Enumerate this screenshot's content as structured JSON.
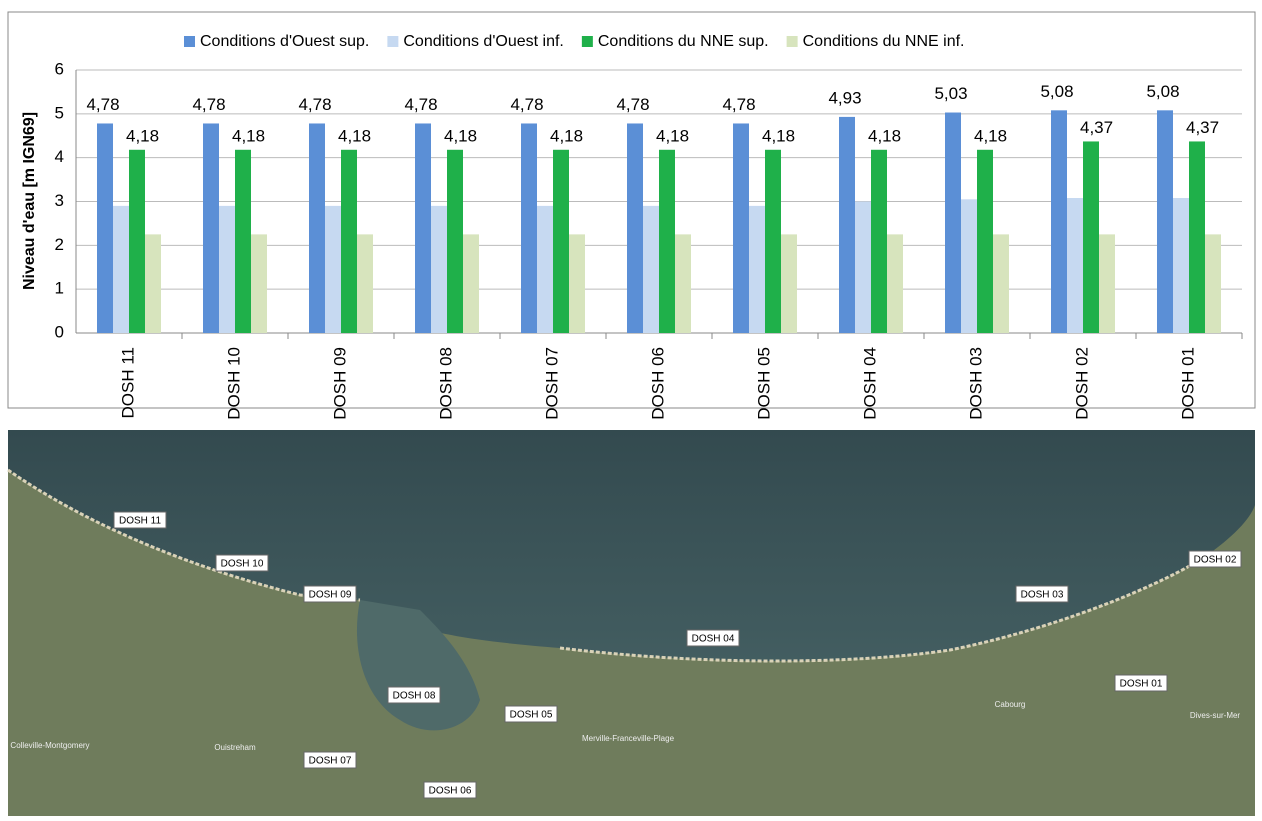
{
  "chart_data": {
    "type": "bar",
    "y_label": "Niveau d'eau [m IGN69]",
    "categories": [
      "DOSH 11",
      "DOSH 10",
      "DOSH 09",
      "DOSH 08",
      "DOSH 07",
      "DOSH 06",
      "DOSH 05",
      "DOSH 04",
      "DOSH 03",
      "DOSH 02",
      "DOSH 01"
    ],
    "series": [
      {
        "name": "Conditions d'Ouest sup.",
        "color": "#5b8fd6",
        "values": [
          4.78,
          4.78,
          4.78,
          4.78,
          4.78,
          4.78,
          4.78,
          4.93,
          5.03,
          5.08,
          5.08
        ],
        "value_labels": [
          "4,78",
          "4,78",
          "4,78",
          "4,78",
          "4,78",
          "4,78",
          "4,78",
          "4,93",
          "5,03",
          "5,08",
          "5,08"
        ]
      },
      {
        "name": "Conditions d'Ouest inf.",
        "color": "#c6d9f1",
        "values": [
          2.9,
          2.9,
          2.9,
          2.9,
          2.9,
          2.9,
          2.9,
          3.0,
          3.05,
          3.08,
          3.08
        ]
      },
      {
        "name": "Conditions du NNE sup.",
        "color": "#1fb04a",
        "values": [
          4.18,
          4.18,
          4.18,
          4.18,
          4.18,
          4.18,
          4.18,
          4.18,
          4.18,
          4.37,
          4.37
        ],
        "value_labels": [
          "4,18",
          "4,18",
          "4,18",
          "4,18",
          "4,18",
          "4,18",
          "4,18",
          "4,18",
          "4,18",
          "4,37",
          "4,37"
        ]
      },
      {
        "name": "Conditions du NNE inf.",
        "color": "#d7e4bd",
        "values": [
          2.25,
          2.25,
          2.25,
          2.25,
          2.25,
          2.25,
          2.25,
          2.25,
          2.25,
          2.25,
          2.25
        ]
      }
    ],
    "ylim": [
      0,
      6
    ],
    "yticks": [
      0,
      1,
      2,
      3,
      4,
      5,
      6
    ],
    "grid": true,
    "legend": "top"
  },
  "map": {
    "section_labels": [
      "DOSH 11",
      "DOSH 10",
      "DOSH 09",
      "DOSH 08",
      "DOSH 07",
      "DOSH 06",
      "DOSH 05",
      "DOSH 04",
      "DOSH 03",
      "DOSH 02",
      "DOSH 01"
    ],
    "places": [
      "Colleville-Montgomery",
      "Ouistreham",
      "Merville-Franceville-Plage",
      "Cabourg",
      "Dives-sur-Mer"
    ]
  }
}
